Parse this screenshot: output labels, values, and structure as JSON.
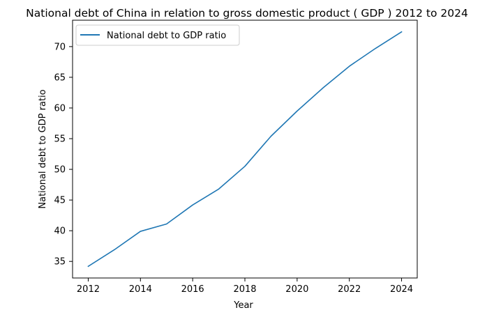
{
  "chart_data": {
    "type": "line",
    "title": "National debt of China in relation to gross domestic product ( GDP ) 2012 to 2024",
    "xlabel": "Year",
    "ylabel": "National debt to GDP ratio",
    "x": [
      2012,
      2013,
      2014,
      2015,
      2016,
      2017,
      2018,
      2019,
      2020,
      2021,
      2022,
      2023,
      2024
    ],
    "series": [
      {
        "name": "National debt to GDP ratio",
        "color": "#1f77b4",
        "values": [
          34.2,
          36.9,
          39.9,
          41.1,
          44.2,
          46.8,
          50.5,
          55.4,
          59.5,
          63.3,
          66.8,
          69.7,
          72.4
        ]
      }
    ],
    "xlim": [
      2011.4,
      2024.6
    ],
    "ylim": [
      32.3,
      74.3
    ],
    "xticks": [
      2012,
      2014,
      2016,
      2018,
      2020,
      2022,
      2024
    ],
    "yticks": [
      35,
      40,
      45,
      50,
      55,
      60,
      65,
      70
    ],
    "grid": false,
    "legend_position": "upper-left"
  }
}
